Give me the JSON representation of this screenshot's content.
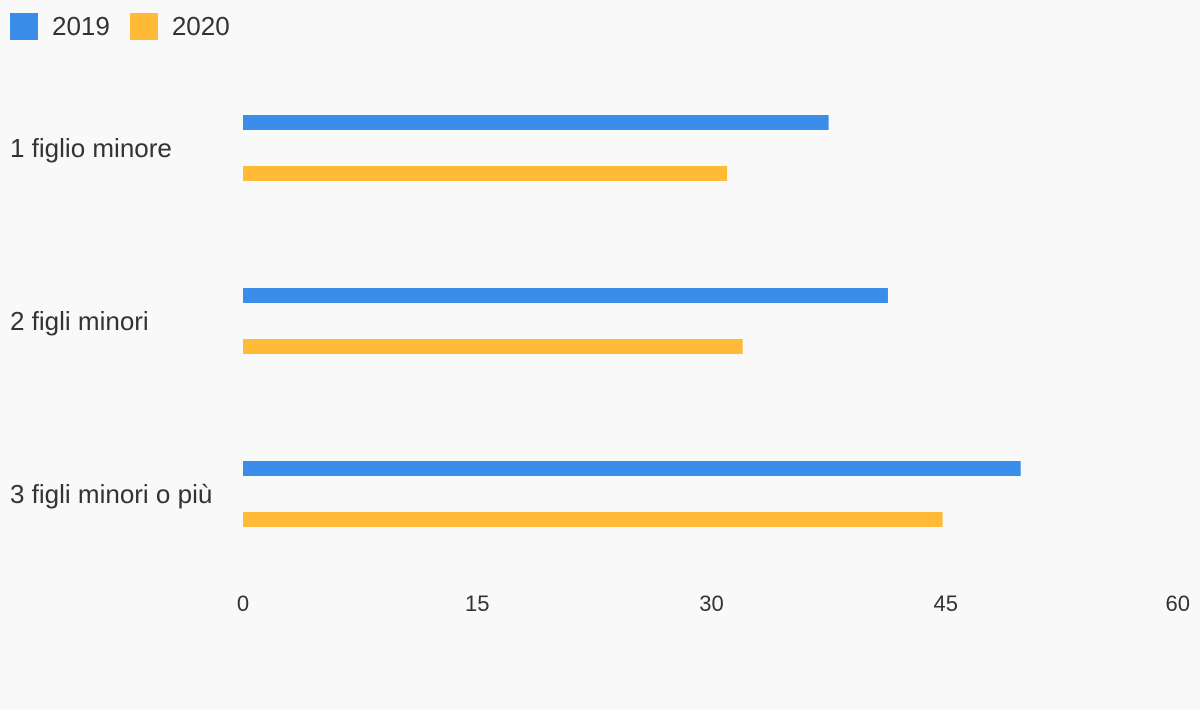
{
  "chart_data": {
    "type": "bar",
    "orientation": "horizontal",
    "title": "",
    "xlabel": "",
    "ylabel": "",
    "categories": [
      "1 figlio minore",
      "2 figli minori",
      "3 figli minori o più"
    ],
    "series": [
      {
        "name": "2019",
        "color": "#3a8eea",
        "values": [
          37.5,
          41.3,
          49.8
        ]
      },
      {
        "name": "2020",
        "color": "#ffbb38",
        "values": [
          31.0,
          32.0,
          44.8
        ]
      }
    ],
    "xlim": [
      0,
      60
    ],
    "xticks": [
      "0",
      "15",
      "30",
      "45",
      "60"
    ],
    "grid": false,
    "legend_position": "top-left"
  }
}
